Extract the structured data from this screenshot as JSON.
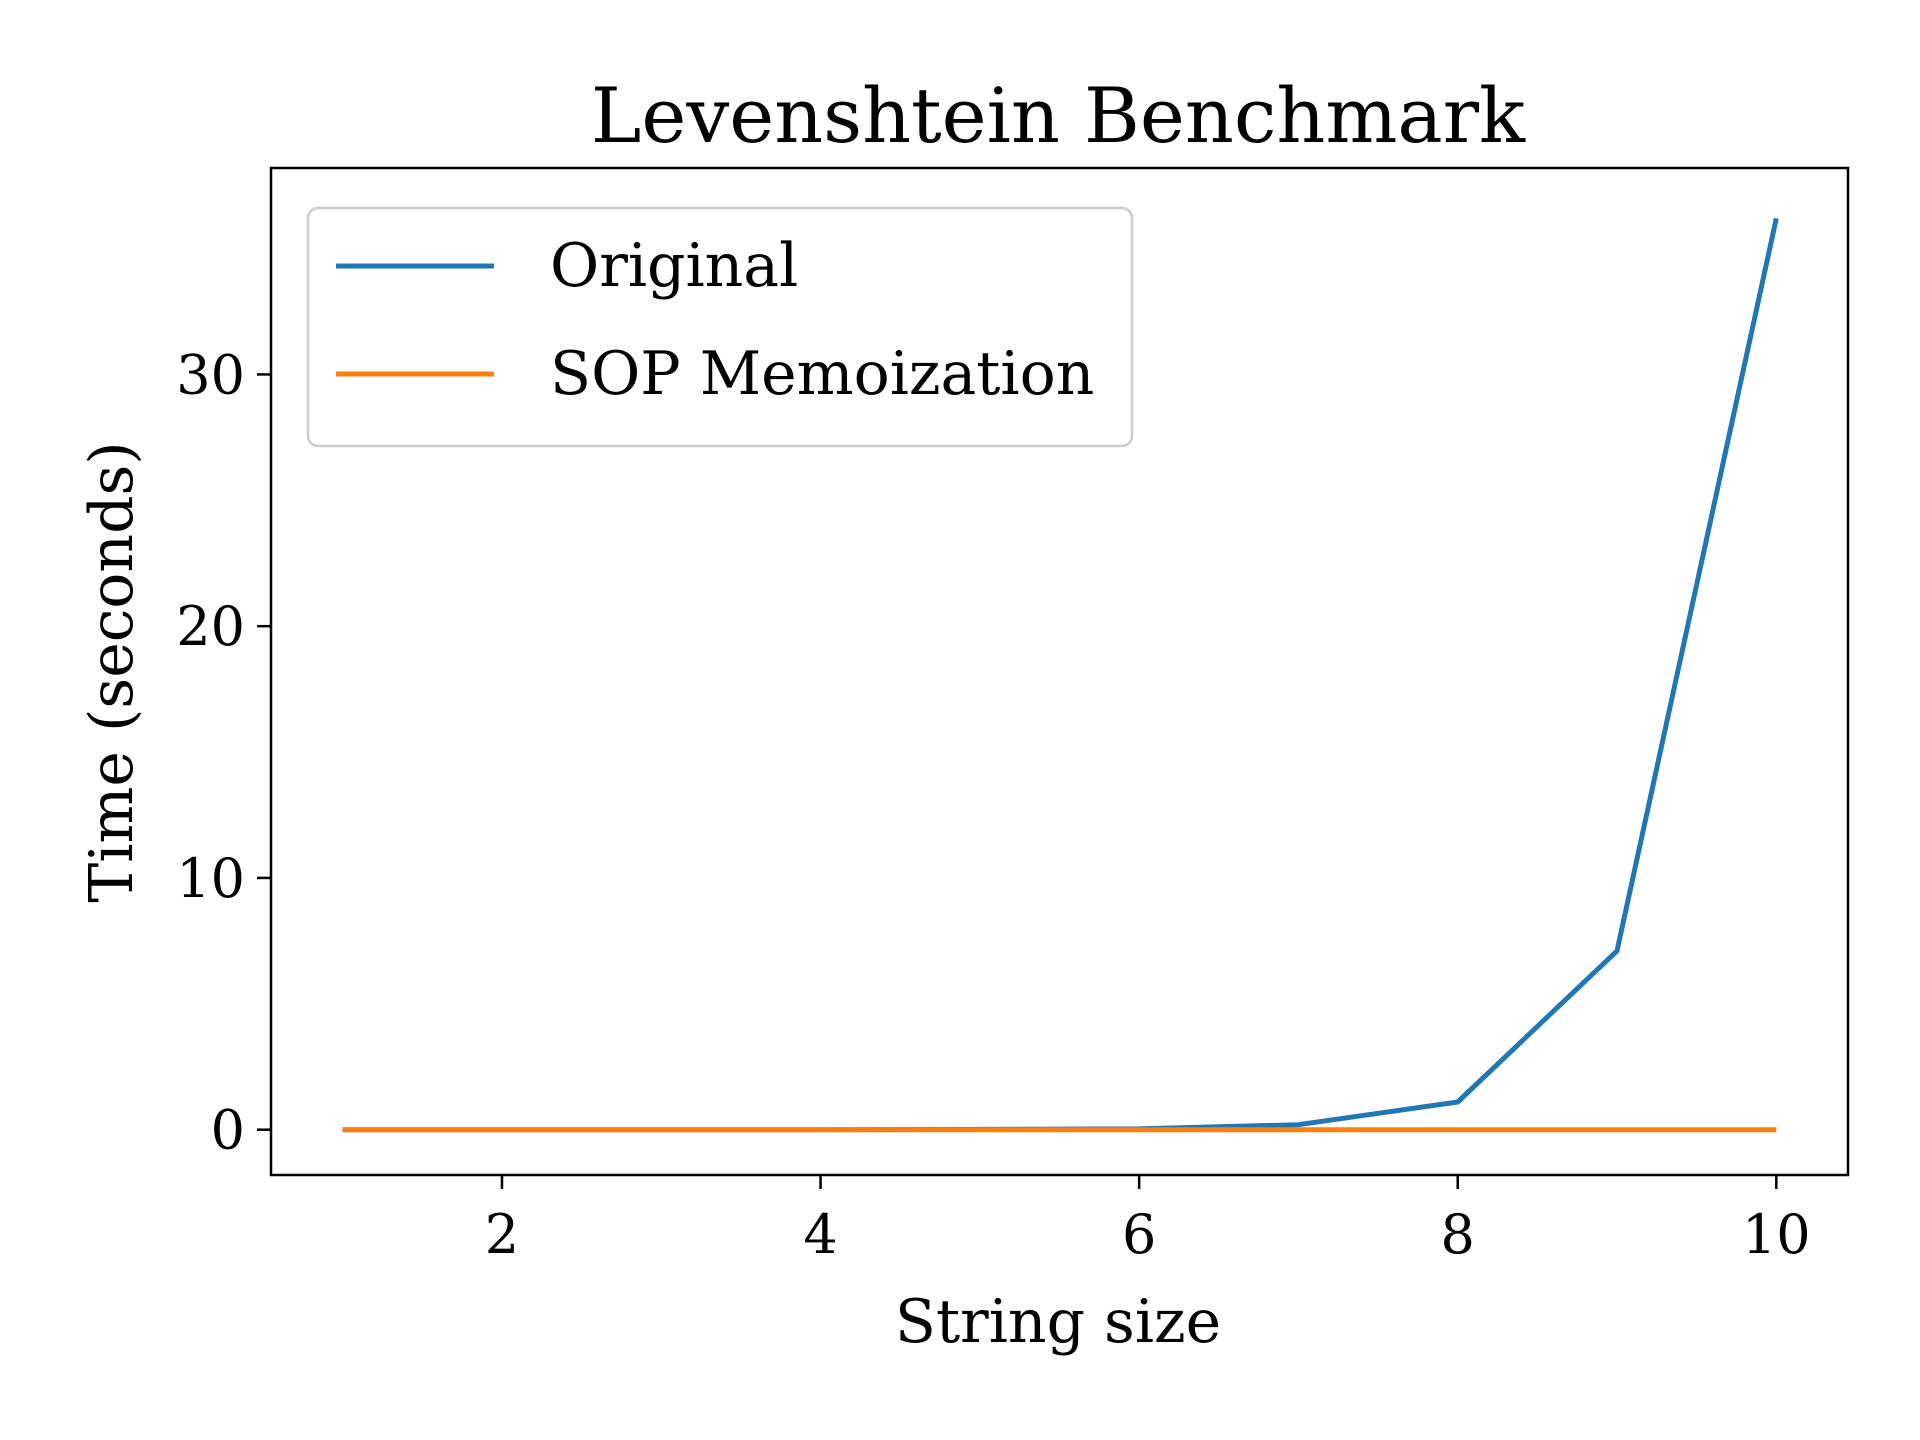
{
  "chart_data": {
    "type": "line",
    "title": "Levenshtein Benchmark",
    "xlabel": "String size",
    "ylabel": "Time (seconds)",
    "xlim": [
      0.55,
      10.45
    ],
    "ylim": [
      -1.8,
      38.2
    ],
    "xticks": [
      2,
      4,
      6,
      8,
      10
    ],
    "yticks": [
      0,
      10,
      20,
      30
    ],
    "grid": false,
    "legend_position": "top-left",
    "x": [
      1,
      2,
      3,
      4,
      5,
      6,
      7,
      8,
      9,
      10
    ],
    "series": [
      {
        "name": "Original",
        "color": "#1f77b4",
        "values": [
          0.0,
          0.0,
          0.0,
          0.0,
          0.01,
          0.03,
          0.2,
          1.1,
          7.1,
          36.2
        ]
      },
      {
        "name": "SOP Memoization",
        "color": "#ff7f0e",
        "values": [
          0.0,
          0.0,
          0.0,
          0.0,
          0.0,
          0.0,
          0.0,
          0.0,
          0.0,
          0.0
        ]
      }
    ]
  }
}
